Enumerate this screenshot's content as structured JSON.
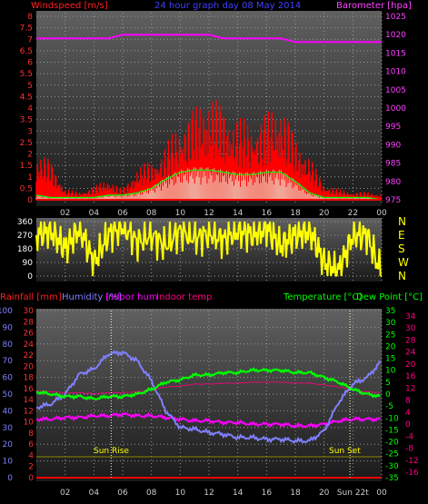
{
  "top": {
    "left_label": "Windspeed [m/s]",
    "title": "24 hour graph day  08 May 2014",
    "right_label": "Barometer [hpa]",
    "wind_ticks": [
      "0",
      "0.5",
      "1",
      "1.5",
      "2",
      "2.5",
      "3",
      "3.5",
      "4",
      "4.5",
      "5",
      "5.5",
      "6",
      "6.5",
      "7",
      "7.5",
      "8"
    ],
    "baro_ticks": [
      "975",
      "980",
      "985",
      "990",
      "995",
      "1000",
      "1005",
      "1010",
      "1015",
      "1020",
      "1025"
    ],
    "hour_ticks": [
      "02",
      "04",
      "06",
      "08",
      "10",
      "12",
      "14",
      "16",
      "18",
      "20",
      "22",
      "00"
    ]
  },
  "dir": {
    "ticks": [
      "0",
      "90",
      "180",
      "270",
      "360"
    ],
    "compass": [
      "N",
      "W",
      "S",
      "E",
      "N"
    ]
  },
  "bottom": {
    "rain_label": "Rainfall [mm]",
    "hum_label": "Humidity [%]",
    "inhum_label": "Indoor hum",
    "intemp_label": "Indoor temp",
    "temp_label": "Temperature [°C]",
    "dew_label": "Dew Point [°C]",
    "hum_ticks": [
      "0",
      "10",
      "20",
      "30",
      "40",
      "50",
      "60",
      "70",
      "80",
      "90",
      "100"
    ],
    "rain_ticks": [
      "0",
      "2",
      "4",
      "6",
      "8",
      "10",
      "12",
      "14",
      "16",
      "18",
      "20",
      "22",
      "24",
      "26",
      "28",
      "30"
    ],
    "temp_ticks": [
      "-35",
      "-30",
      "-25",
      "-20",
      "-15",
      "-10",
      "-5",
      "0",
      "5",
      "10",
      "15",
      "20",
      "25",
      "30",
      "35"
    ],
    "intemp_ticks": [
      "-16",
      "-12",
      "-8",
      "-4",
      "0",
      "4",
      "8",
      "12",
      "16",
      "20",
      "24",
      "28",
      "30",
      "34"
    ],
    "hour_ticks": [
      "02",
      "04",
      "06",
      "08",
      "10",
      "12",
      "14",
      "16",
      "18",
      "20",
      "22",
      "00"
    ],
    "sunrise": "Sun Rise",
    "sunset": "Sun Set",
    "sunset_axis": "Sun 22t"
  },
  "colors": {
    "wind": "#ff0000",
    "gust": "#ff0000",
    "avg_wind": "#00ff00",
    "baro": "#ff00ff",
    "dir": "#ffff00",
    "humidity": "#8080ff",
    "temp": "#00ff00",
    "indoor_hum": "#ff00ff",
    "rain": "#ff0000",
    "dew": "#00ff00"
  },
  "chart_data": [
    {
      "type": "bar",
      "title": "24 hour graph day  08 May 2014",
      "ylabel": "Windspeed [m/s]",
      "y2label": "Barometer [hpa]",
      "ylim": [
        0,
        8
      ],
      "y2lim": [
        975,
        1025
      ],
      "x_hours": [
        0,
        1,
        2,
        3,
        4,
        5,
        6,
        7,
        8,
        9,
        10,
        11,
        12,
        13,
        14,
        15,
        16,
        17,
        18,
        19,
        20,
        21,
        22,
        23,
        24
      ],
      "series": [
        {
          "name": "Barometer",
          "values": [
            1019,
            1019,
            1019,
            1019,
            1019,
            1019,
            1020,
            1020,
            1020,
            1020,
            1020,
            1020,
            1020,
            1019,
            1019,
            1019,
            1019,
            1019,
            1018,
            1018,
            1018,
            1018,
            1018,
            1018,
            1018
          ]
        },
        {
          "name": "Windspeed",
          "values": [
            1.8,
            1.5,
            0.4,
            0.3,
            0.5,
            0.8,
            0.4,
            1.2,
            1.5,
            2.0,
            3.0,
            3.5,
            4.0,
            3.6,
            3.0,
            3.0,
            3.2,
            3.8,
            2.4,
            1.6,
            0.6,
            0.4,
            0.3,
            0.3,
            0.2
          ]
        },
        {
          "name": "Average",
          "values": [
            0.2,
            0.1,
            0.1,
            0.1,
            0.1,
            0.2,
            0.2,
            0.3,
            0.5,
            0.9,
            1.2,
            1.3,
            1.3,
            1.2,
            1.1,
            1.1,
            1.2,
            1.2,
            0.8,
            0.3,
            0.1,
            0.1,
            0.1,
            0.1,
            0.0
          ]
        }
      ]
    },
    {
      "type": "scatter",
      "ylabel": "Wind direction",
      "ylim": [
        0,
        360
      ],
      "x_hours": [
        0,
        1,
        2,
        3,
        4,
        5,
        6,
        7,
        8,
        9,
        10,
        11,
        12,
        13,
        14,
        15,
        16,
        17,
        18,
        19,
        20,
        21,
        22,
        23,
        24
      ],
      "values": [
        270,
        300,
        180,
        315,
        90,
        270,
        330,
        225,
        270,
        200,
        300,
        250,
        280,
        240,
        300,
        270,
        315,
        200,
        270,
        300,
        90,
        30,
        270,
        270,
        10
      ]
    },
    {
      "type": "line",
      "ylabel": "Humidity [%]",
      "y2label": "Temperature [°C]",
      "ylim": [
        0,
        100
      ],
      "y2lim": [
        -35,
        35
      ],
      "x_hours": [
        0,
        1,
        2,
        3,
        4,
        5,
        6,
        7,
        8,
        9,
        10,
        11,
        12,
        13,
        14,
        15,
        16,
        17,
        18,
        19,
        20,
        21,
        22,
        23,
        24
      ],
      "series": [
        {
          "name": "Humidity",
          "values": [
            42,
            44,
            50,
            62,
            65,
            74,
            75,
            70,
            58,
            40,
            30,
            29,
            27,
            26,
            24,
            24,
            23,
            23,
            22,
            22,
            28,
            45,
            56,
            60,
            70
          ]
        },
        {
          "name": "Temperature",
          "values": [
            1,
            0,
            -1,
            -1,
            -2,
            -1,
            -1,
            0,
            2,
            5,
            6,
            8,
            8,
            9,
            9,
            10,
            10,
            10,
            9,
            9,
            7,
            5,
            2,
            0,
            -1
          ]
        },
        {
          "name": "Indoor hum",
          "values": [
            35,
            35,
            36,
            36,
            37,
            37,
            38,
            37,
            37,
            36,
            35,
            34,
            34,
            33,
            33,
            32,
            32,
            32,
            31,
            31,
            32,
            34,
            35,
            35,
            35
          ]
        }
      ]
    }
  ]
}
